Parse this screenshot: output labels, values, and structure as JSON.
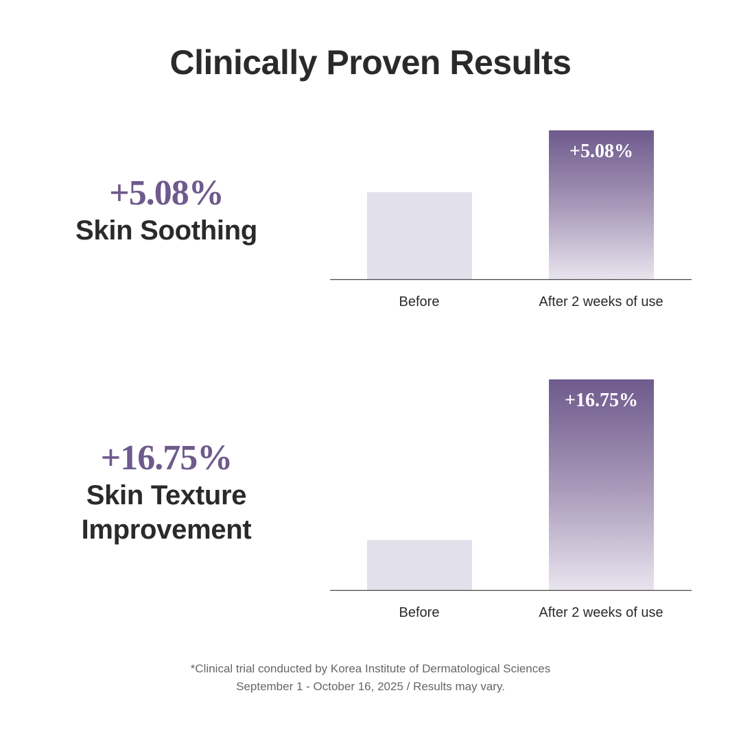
{
  "title": "Clinically Proven Results",
  "chart_data": [
    {
      "type": "bar",
      "metric_value": "+5.08%",
      "metric_label": "Skin Soothing",
      "categories": [
        "Before",
        "After 2 weeks of use"
      ],
      "values": [
        0.585,
        1.0
      ],
      "data_labels": [
        "",
        "+5.08%"
      ],
      "ylim": [
        0,
        1
      ],
      "colors": {
        "before": "#e2e0ea",
        "after_top": "#6e5a8c",
        "after_bottom": "#e8e4ee"
      }
    },
    {
      "type": "bar",
      "metric_value": "+16.75%",
      "metric_label": "Skin Texture Improvement",
      "metric_label_lines": [
        "Skin Texture",
        "Improvement"
      ],
      "categories": [
        "Before",
        "After 2 weeks of use"
      ],
      "values": [
        0.238,
        1.0
      ],
      "data_labels": [
        "",
        "+16.75%"
      ],
      "ylim": [
        0,
        1
      ],
      "colors": {
        "before": "#e2e0ea",
        "after_top": "#6e5a8c",
        "after_bottom": "#e8e4ee"
      }
    }
  ],
  "footnote": {
    "line1": "*Clinical trial conducted by Korea Institute of Dermatological Sciences",
    "line2": "September 1 - October 16, 2025 / Results may vary."
  }
}
